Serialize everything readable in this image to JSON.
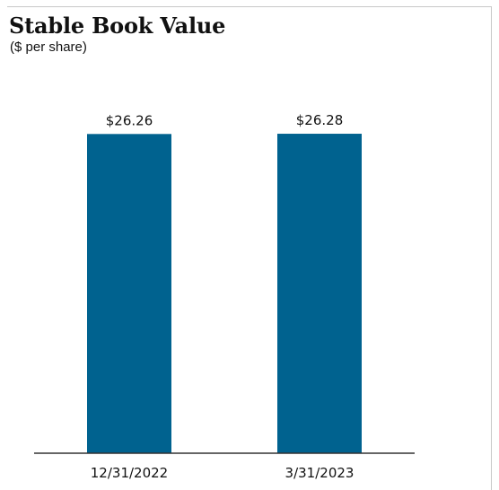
{
  "chart_data": {
    "type": "bar",
    "title": "Stable Book Value",
    "subtitle": "($ per share)",
    "categories": [
      "12/31/2022",
      "3/31/2023"
    ],
    "values": [
      26.26,
      26.28
    ],
    "data_labels": [
      "$26.26",
      "$26.28"
    ],
    "xlabel": "",
    "ylabel": "",
    "ylim": [
      0,
      29.9
    ],
    "grid": false,
    "legend": "none",
    "colors": {
      "bar": "#00628f",
      "axis": "#333333"
    }
  }
}
